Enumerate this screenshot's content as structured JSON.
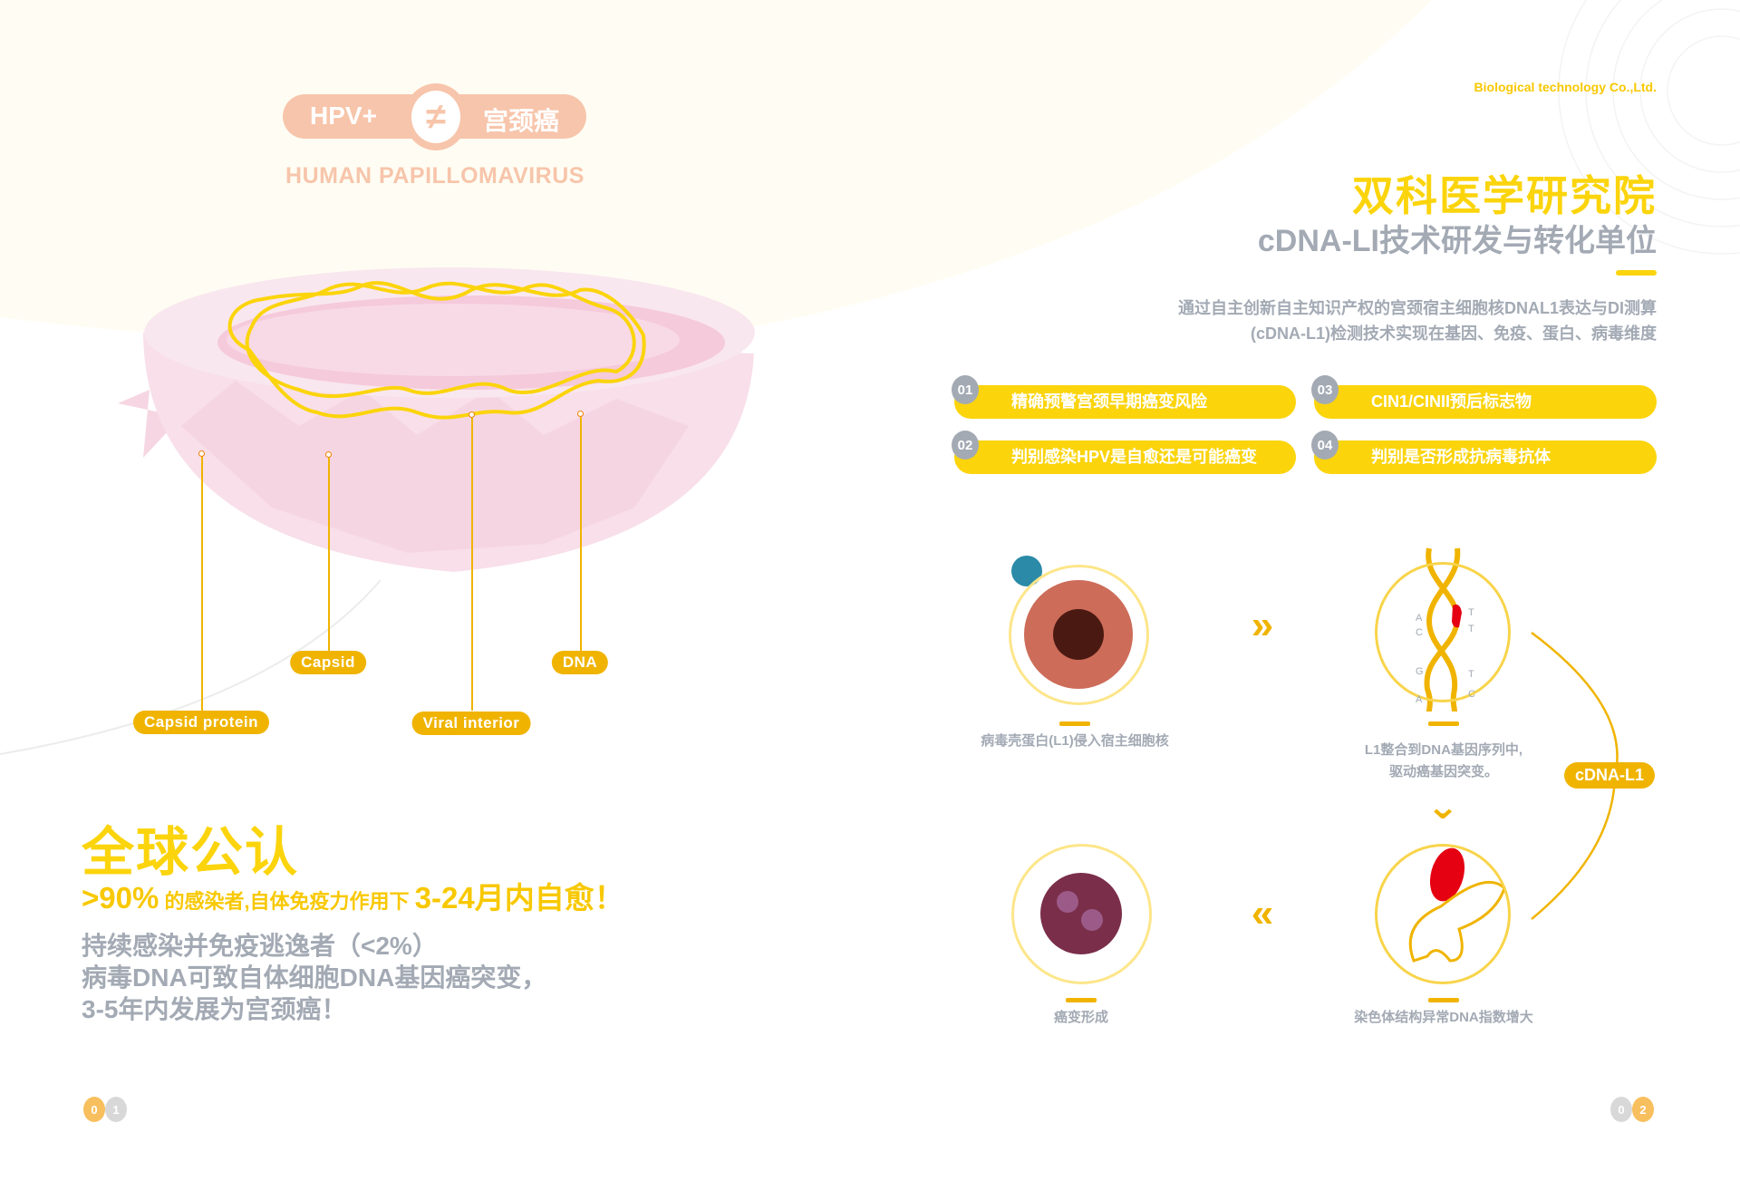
{
  "left": {
    "badge": {
      "left": "HPV+",
      "symbol": "≠",
      "right": "宫颈癌"
    },
    "subtitle": "HUMAN  PAPILLOMAVIRUS",
    "labels": {
      "capsid_protein": "Capsid  protein",
      "capsid": "Capsid",
      "viral_interior": "Viral  interior",
      "dna": "DNA"
    },
    "headline": "全球公认",
    "stat": {
      "percent": ">90%",
      "middle": " 的感染者,自体免疫力作用下 ",
      "duration": "3-24月内自愈！"
    },
    "warning": [
      "持续感染并免疫逃逸者（<2%）",
      "病毒DNA可致自体细胞DNA基因癌突变，",
      "3-5年内发展为宫颈癌！"
    ],
    "page": [
      "0",
      "1"
    ]
  },
  "right": {
    "company": "Biological  technology Co.,Ltd.",
    "title": "双科医学研究院",
    "subtitle": "cDNA-LI技术研发与转化单位",
    "description": [
      "通过自主创新自主知识产权的宫颈宿主细胞核DNAL1表达与DI测算",
      "(cDNA-L1)检测技术实现在基因、免疫、蛋白、病毒维度"
    ],
    "features": [
      {
        "num": "01",
        "text": "精确预警宫颈早期癌变风险"
      },
      {
        "num": "02",
        "text": "判别感染HPV是自愈还是可能癌变"
      },
      {
        "num": "03",
        "text": "CIN1/CINII预后标志物"
      },
      {
        "num": "04",
        "text": "判别是否形成抗病毒抗体"
      }
    ],
    "steps": [
      {
        "caption": "病毒壳蛋白(L1)侵入宿主细胞核"
      },
      {
        "caption": [
          "L1整合到DNA基因序列中,",
          "驱动癌基因突变。"
        ]
      },
      {
        "caption": "染色体结构异常DNA指数增大"
      },
      {
        "caption": "癌变形成"
      }
    ],
    "dna_bases": [
      "A",
      "C",
      "G",
      "A",
      "T",
      "T",
      "T",
      "C"
    ],
    "cycle_label": "cDNA-L1",
    "arrows": {
      "right": "»",
      "down": "⌄",
      "left": "«"
    },
    "page": [
      "0",
      "2"
    ]
  },
  "colors": {
    "yellow": "#fbd40c",
    "amber": "#f0b400",
    "peach": "#f7c5ab",
    "grey": "#a3aab4",
    "cream": "#fffdf3",
    "red": "#e50012"
  }
}
